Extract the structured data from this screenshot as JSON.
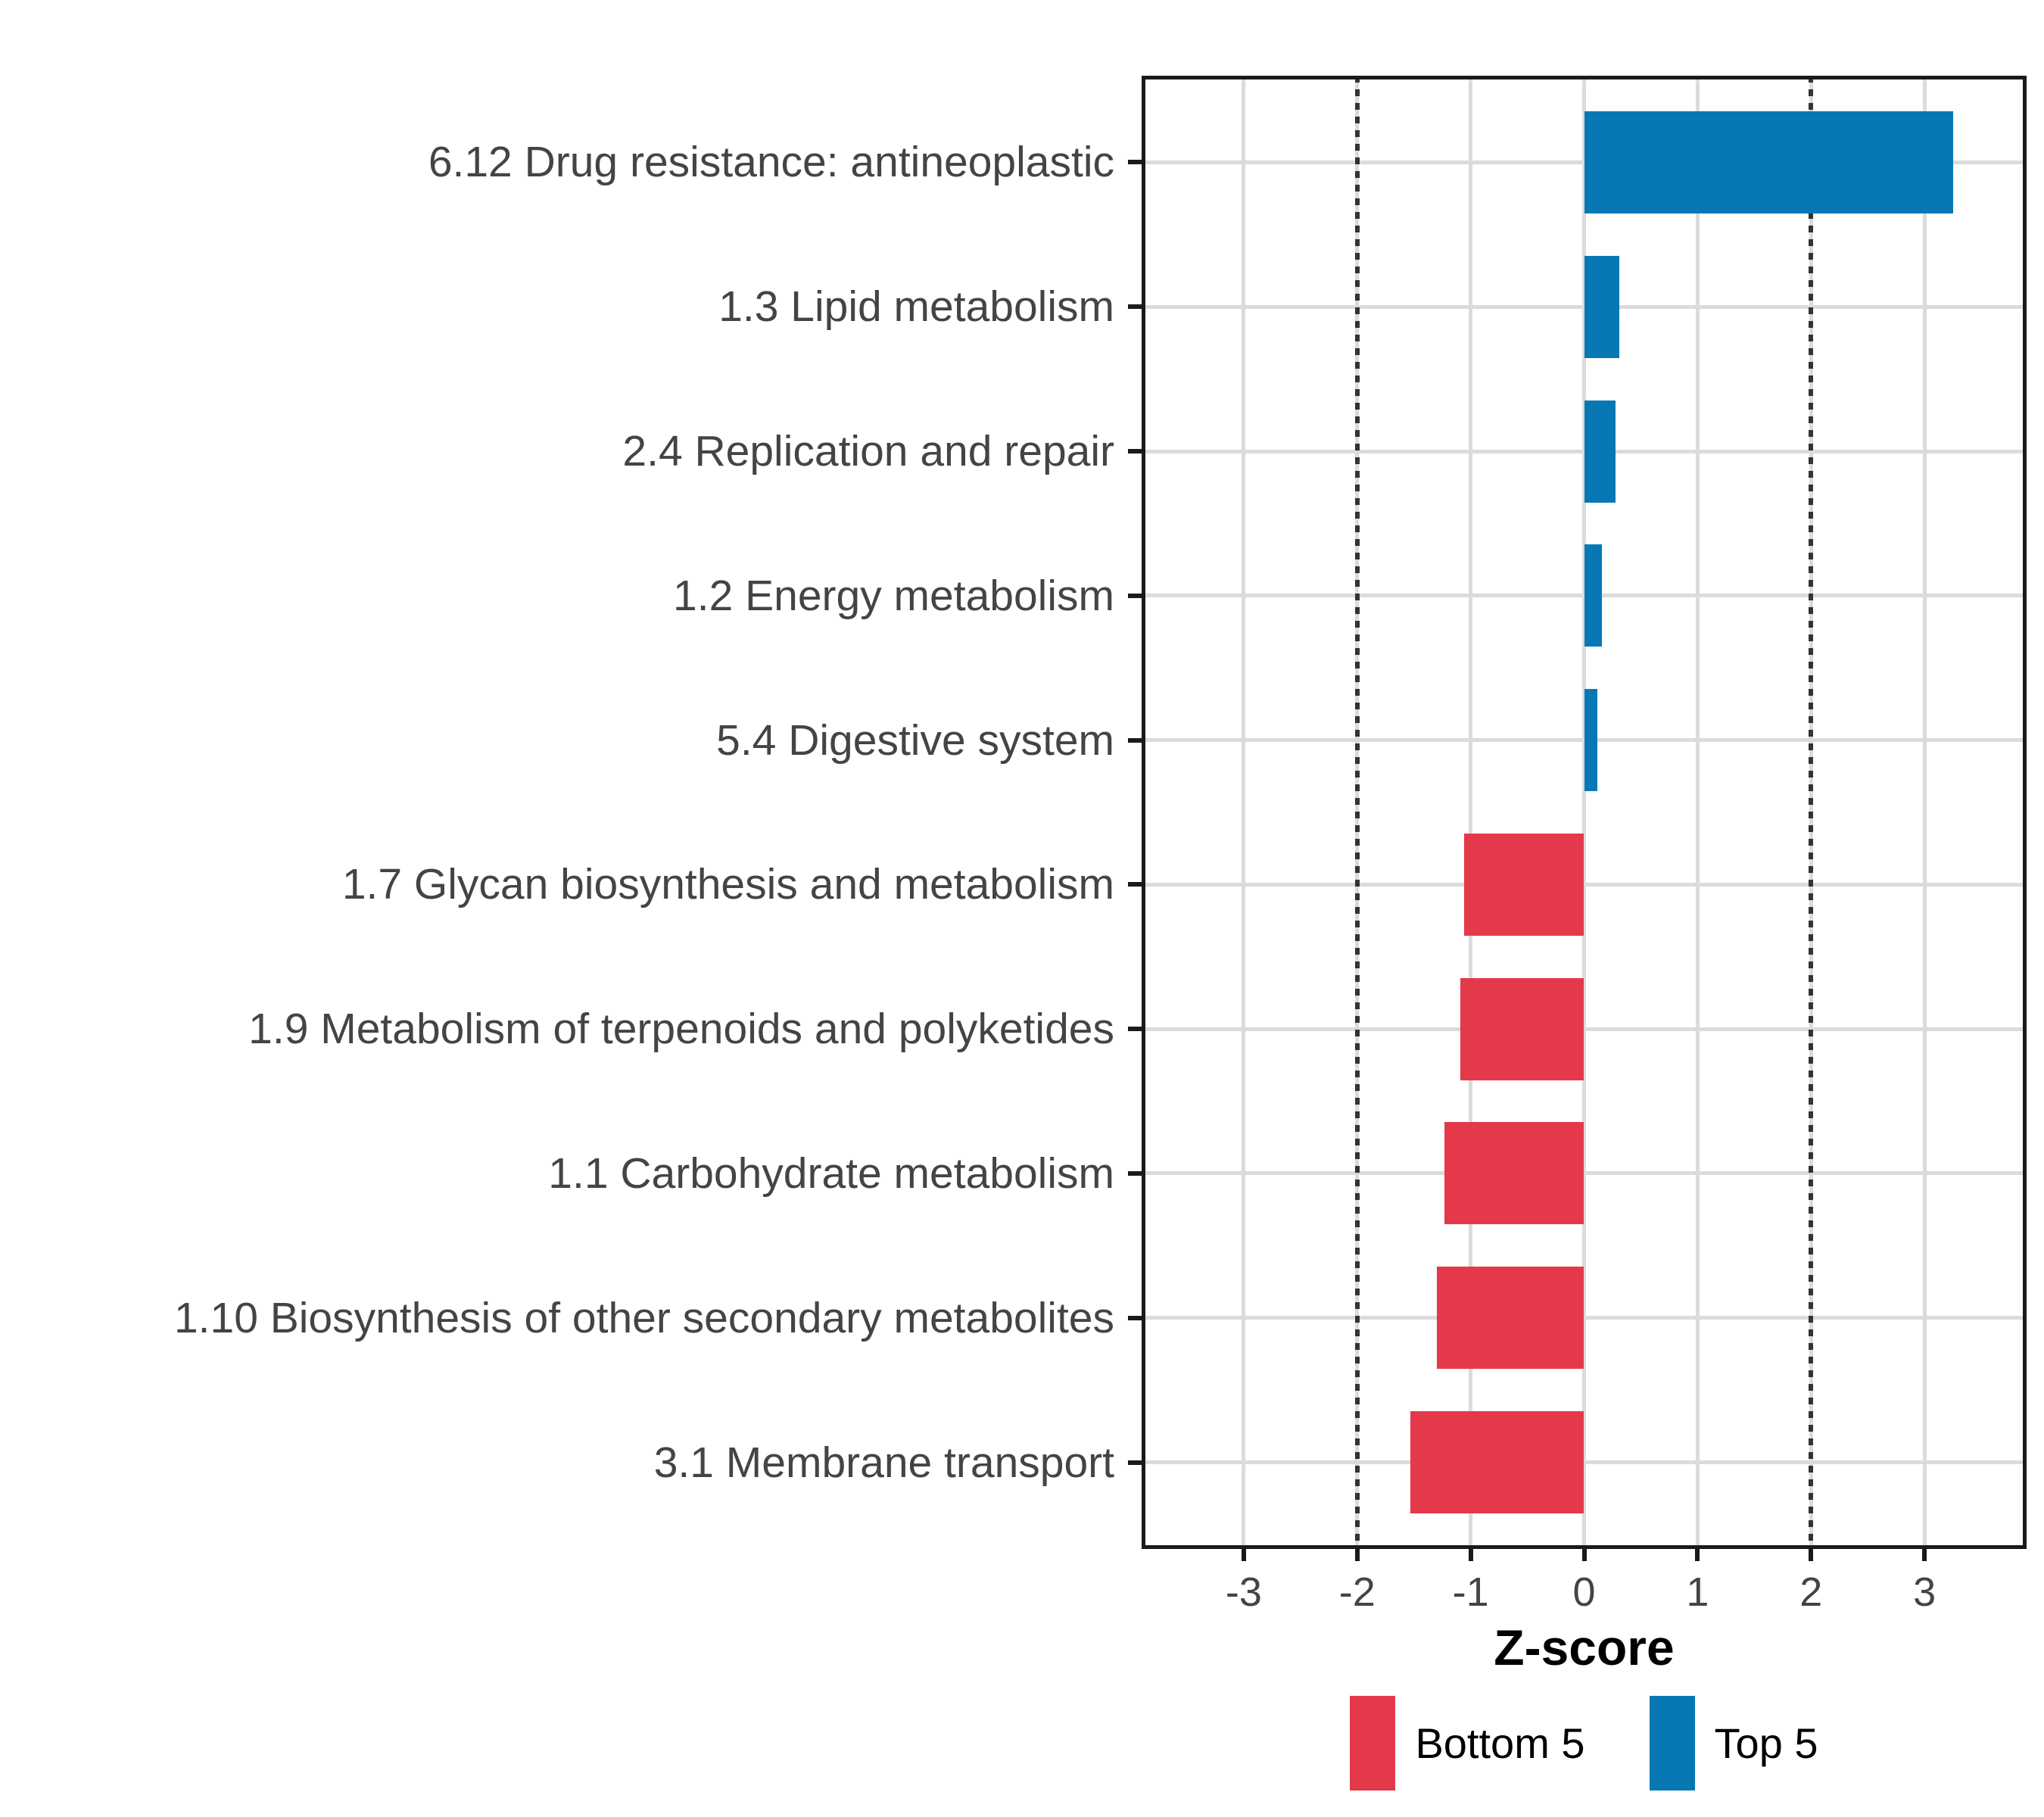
{
  "chart_data": {
    "type": "bar",
    "orientation": "horizontal",
    "title": "",
    "xlabel": "Z-score",
    "ylabel": "",
    "categories": [
      "6.12 Drug resistance: antineoplastic",
      "1.3 Lipid metabolism",
      "2.4 Replication and repair",
      "1.2 Energy metabolism",
      "5.4 Digestive system",
      "1.7 Glycan biosynthesis and metabolism",
      "1.9 Metabolism of terpenoids and polyketides",
      "1.1 Carbohydrate metabolism",
      "1.10 Biosynthesis of other secondary metabolites",
      "3.1 Membrane transport"
    ],
    "values": [
      3.25,
      0.31,
      0.28,
      0.16,
      0.12,
      -1.06,
      -1.09,
      -1.23,
      -1.3,
      -1.53
    ],
    "groups": [
      "Top 5",
      "Top 5",
      "Top 5",
      "Top 5",
      "Top 5",
      "Bottom 5",
      "Bottom 5",
      "Bottom 5",
      "Bottom 5",
      "Bottom 5"
    ],
    "colors": {
      "Bottom 5": "#E4394B",
      "Top 5": "#0878B4"
    },
    "xlim": [
      -3.9,
      3.9
    ],
    "x_ticks": [
      -3,
      -2,
      -1,
      0,
      1,
      2,
      3
    ],
    "reference_lines": [
      -2,
      2
    ],
    "grid": true,
    "panel_border_color": "#1a1a1a",
    "gridline_color": "#dbdbdb",
    "legend": {
      "position": "bottom",
      "entries": [
        {
          "label": "Bottom 5",
          "color": "#E4394B"
        },
        {
          "label": "Top 5",
          "color": "#0878B4"
        }
      ]
    }
  }
}
